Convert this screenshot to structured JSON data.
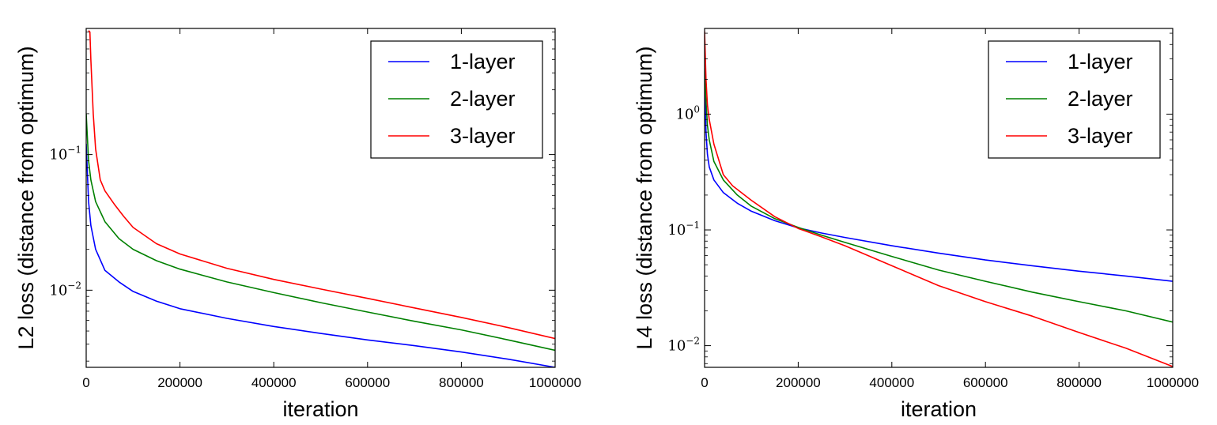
{
  "chart_data": [
    {
      "type": "line",
      "xlabel": "iteration",
      "ylabel": "L2 loss (distance from optimum)",
      "yscale": "log",
      "xlim": [
        0,
        1000000
      ],
      "ylim": [
        0.0027,
        0.85
      ],
      "xticks": [
        {
          "value": 0,
          "label": "0"
        },
        {
          "value": 200000,
          "label": "200000"
        },
        {
          "value": 400000,
          "label": "400000"
        },
        {
          "value": 600000,
          "label": "600000"
        },
        {
          "value": 800000,
          "label": "800000"
        },
        {
          "value": 1000000,
          "label": "1000000"
        }
      ],
      "yticks": [
        {
          "value": 0.1,
          "base": "10",
          "exp": "−1"
        },
        {
          "value": 0.01,
          "base": "10",
          "exp": "−2"
        }
      ],
      "legend_position": "top-right",
      "series": [
        {
          "name": "1-layer",
          "color": "#0000ff",
          "x": [
            0,
            5000,
            10000,
            20000,
            40000,
            70000,
            100000,
            150000,
            200000,
            300000,
            400000,
            500000,
            600000,
            700000,
            800000,
            900000,
            1000000
          ],
          "y": [
            0.12,
            0.045,
            0.03,
            0.02,
            0.014,
            0.0115,
            0.0098,
            0.0083,
            0.0073,
            0.0062,
            0.0054,
            0.0048,
            0.0043,
            0.0039,
            0.0035,
            0.0031,
            0.0027
          ]
        },
        {
          "name": "2-layer",
          "color": "#008000",
          "x": [
            0,
            5000,
            10000,
            20000,
            40000,
            70000,
            100000,
            150000,
            200000,
            300000,
            400000,
            500000,
            600000,
            700000,
            800000,
            900000,
            1000000
          ],
          "y": [
            0.2,
            0.09,
            0.065,
            0.045,
            0.032,
            0.024,
            0.02,
            0.0165,
            0.0143,
            0.0115,
            0.0096,
            0.0081,
            0.0069,
            0.0059,
            0.0051,
            0.0043,
            0.0036
          ]
        },
        {
          "name": "3-layer",
          "color": "#ff0000",
          "x": [
            5000,
            8000,
            10000,
            15000,
            20000,
            30000,
            40000,
            60000,
            80000,
            100000,
            150000,
            200000,
            300000,
            400000,
            500000,
            600000,
            700000,
            800000,
            900000,
            1000000
          ],
          "y": [
            0.82,
            0.8,
            0.5,
            0.2,
            0.11,
            0.065,
            0.054,
            0.043,
            0.035,
            0.029,
            0.022,
            0.0185,
            0.0145,
            0.012,
            0.0102,
            0.0087,
            0.0074,
            0.0063,
            0.0053,
            0.0044
          ]
        }
      ]
    },
    {
      "type": "line",
      "xlabel": "iteration",
      "ylabel": "L4 loss (distance from optimum)",
      "yscale": "log",
      "xlim": [
        0,
        1000000
      ],
      "ylim": [
        0.0065,
        5.5
      ],
      "xticks": [
        {
          "value": 0,
          "label": "0"
        },
        {
          "value": 200000,
          "label": "200000"
        },
        {
          "value": 400000,
          "label": "400000"
        },
        {
          "value": 600000,
          "label": "600000"
        },
        {
          "value": 800000,
          "label": "800000"
        },
        {
          "value": 1000000,
          "label": "1000000"
        }
      ],
      "yticks": [
        {
          "value": 1,
          "base": "10",
          "exp": "0"
        },
        {
          "value": 0.1,
          "base": "10",
          "exp": "−1"
        },
        {
          "value": 0.01,
          "base": "10",
          "exp": "−2"
        }
      ],
      "legend_position": "top-right",
      "series": [
        {
          "name": "1-layer",
          "color": "#0000ff",
          "x": [
            0,
            3000,
            6000,
            10000,
            20000,
            40000,
            70000,
            100000,
            150000,
            200000,
            250000,
            300000,
            400000,
            500000,
            600000,
            700000,
            800000,
            900000,
            1000000
          ],
          "y": [
            2.0,
            0.7,
            0.45,
            0.35,
            0.27,
            0.21,
            0.17,
            0.145,
            0.12,
            0.104,
            0.094,
            0.086,
            0.073,
            0.063,
            0.055,
            0.049,
            0.044,
            0.04,
            0.036
          ]
        },
        {
          "name": "2-layer",
          "color": "#008000",
          "x": [
            0,
            3000,
            6000,
            10000,
            20000,
            40000,
            70000,
            100000,
            150000,
            200000,
            250000,
            300000,
            400000,
            500000,
            600000,
            700000,
            800000,
            900000,
            1000000
          ],
          "y": [
            2.5,
            1.3,
            0.8,
            0.6,
            0.39,
            0.27,
            0.2,
            0.16,
            0.125,
            0.105,
            0.09,
            0.078,
            0.059,
            0.045,
            0.036,
            0.029,
            0.024,
            0.02,
            0.016
          ]
        },
        {
          "name": "3-layer",
          "color": "#ff0000",
          "x": [
            0,
            3000,
            6000,
            10000,
            20000,
            40000,
            60000,
            100000,
            150000,
            200000,
            250000,
            300000,
            400000,
            500000,
            600000,
            700000,
            800000,
            900000,
            1000000
          ],
          "y": [
            5.2,
            2.0,
            1.2,
            0.9,
            0.55,
            0.3,
            0.24,
            0.18,
            0.13,
            0.103,
            0.087,
            0.073,
            0.049,
            0.033,
            0.024,
            0.018,
            0.013,
            0.0095,
            0.0066
          ]
        }
      ]
    }
  ]
}
